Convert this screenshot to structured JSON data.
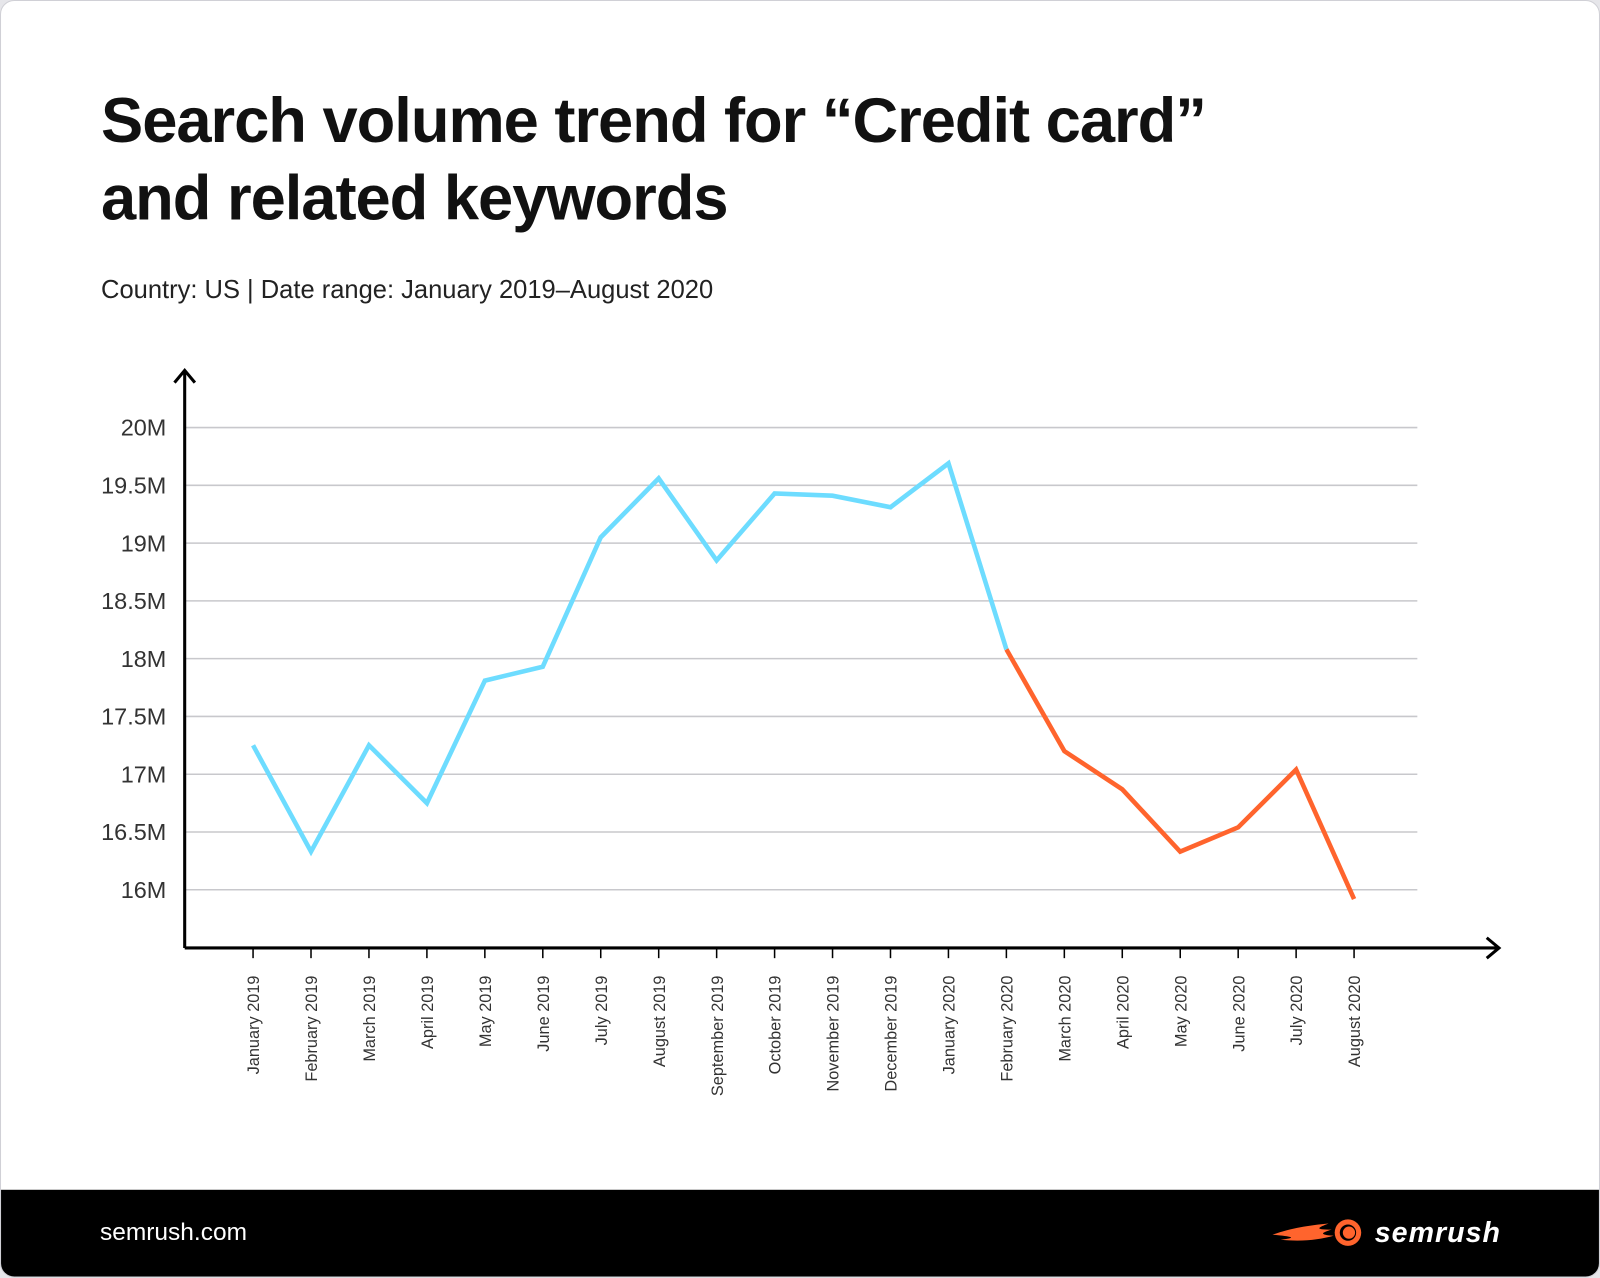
{
  "header": {
    "title": "Search volume trend for “Credit card” and related keywords",
    "subtitle": "Country: US | Date range: January 2019–August 2020"
  },
  "footer": {
    "site": "semrush.com",
    "logo_text": "semrush"
  },
  "chart_data": {
    "type": "line",
    "title": "Search volume trend for “Credit card” and related keywords",
    "xlabel": "",
    "ylabel": "",
    "categories": [
      "January 2019",
      "February 2019",
      "March 2019",
      "April 2019",
      "May 2019",
      "June 2019",
      "July 2019",
      "August 2019",
      "September 2019",
      "October 2019",
      "November 2019",
      "December 2019",
      "January 2020",
      "February 2020",
      "March 2020",
      "April 2020",
      "May 2020",
      "June 2020",
      "July 2020",
      "August 2020"
    ],
    "values": [
      17.25,
      16.33,
      17.25,
      16.75,
      17.81,
      17.93,
      19.05,
      19.56,
      18.85,
      19.43,
      19.41,
      19.31,
      19.69,
      18.08,
      17.2,
      16.87,
      16.33,
      16.54,
      17.04,
      15.92
    ],
    "unit": "M",
    "yticks": [
      {
        "value": 16,
        "label": "16M"
      },
      {
        "value": 16.5,
        "label": "16.5M"
      },
      {
        "value": 17,
        "label": "17M"
      },
      {
        "value": 17.5,
        "label": "17.5M"
      },
      {
        "value": 18,
        "label": "18M"
      },
      {
        "value": 18.5,
        "label": "18.5M"
      },
      {
        "value": 19,
        "label": "19M"
      },
      {
        "value": 19.5,
        "label": "19.5M"
      },
      {
        "value": 20,
        "label": "20M"
      }
    ],
    "ylim": [
      15.5,
      20.5
    ],
    "grid": true,
    "legend": "none",
    "segments": [
      {
        "from": "January 2019",
        "to": "February 2020",
        "color": "#6ddcff"
      },
      {
        "from": "February 2020",
        "to": "August 2020",
        "color": "#ff642d"
      }
    ]
  }
}
